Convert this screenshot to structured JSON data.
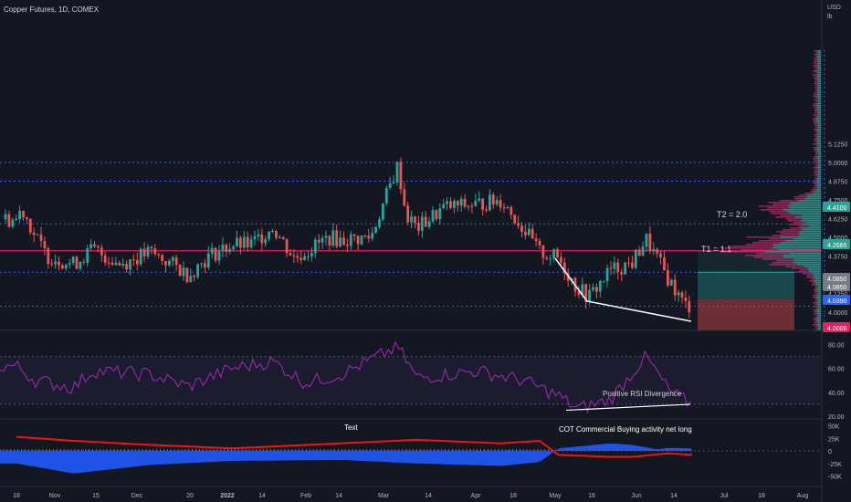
{
  "header": {
    "title": "Copper Futures, 1D, COMEX"
  },
  "price_axis": {
    "currency": "USD",
    "unit": "lb",
    "ticks": [
      "5.1250",
      "5.0000",
      "4.8750",
      "4.7500",
      "4.6250",
      "4.5000",
      "4.3750",
      "4.2500",
      "4.1250",
      "4.0000"
    ]
  },
  "rsi_axis": {
    "ticks": [
      "80.00",
      "60.00",
      "40.00",
      "20.00"
    ]
  },
  "cot_axis": {
    "ticks": [
      "50K",
      "25K",
      "0",
      "-25K",
      "-50K"
    ]
  },
  "time_axis": {
    "labels": [
      "18",
      "Nov",
      "15",
      "Dec",
      "20",
      "2022",
      "14",
      "Feb",
      "14",
      "Mar",
      "14",
      "Apr",
      "18",
      "May",
      "16",
      "Jun",
      "14",
      "Jul",
      "18",
      "Aug"
    ]
  },
  "price_badges": [
    {
      "label": "4.4100",
      "color": "#26a69a"
    },
    {
      "label": "4.2665",
      "color": "#26a69a"
    },
    {
      "label": "4.0850",
      "color": "#787b86"
    },
    {
      "label": "4.0850",
      "color": "#787b86"
    },
    {
      "label": "4.0390",
      "color": "#2962ff"
    },
    {
      "label": "4.0000",
      "color": "#e91e63"
    }
  ],
  "annotations": {
    "t2": "T2 = 2.0",
    "t1": "T1 = 1.1",
    "rsi_divergence": "Positive RSI Divergence",
    "cot_text": "Text",
    "cot_note": "COT Commercial Buying activity net long"
  },
  "colors": {
    "background": "#131722",
    "up": "#26a69a",
    "down": "#ef5350",
    "rsi": "#9c27b0",
    "cot_fill": "#1e53e5",
    "cot_line": "#f01414",
    "level_line": "#e91e63",
    "dotted": "#2962ff"
  },
  "chart_data": [
    {
      "type": "candlestick",
      "title": "Copper Futures, 1D, COMEX",
      "ylim": [
        3.9,
        5.15
      ],
      "horizontal_levels": [
        5.0,
        4.875,
        4.59,
        4.41,
        4.2665,
        4.039
      ],
      "close_path": [
        {
          "x": "2021-10-18",
          "y": 4.62
        },
        {
          "x": "2021-10-20",
          "y": 4.7
        },
        {
          "x": "2021-10-25",
          "y": 4.5
        },
        {
          "x": "2021-10-29",
          "y": 4.38
        },
        {
          "x": "2021-11-08",
          "y": 4.32
        },
        {
          "x": "2021-11-15",
          "y": 4.42
        },
        {
          "x": "2021-11-25",
          "y": 4.32
        },
        {
          "x": "2021-12-06",
          "y": 4.4
        },
        {
          "x": "2021-12-15",
          "y": 4.31
        },
        {
          "x": "2021-12-20",
          "y": 4.25
        },
        {
          "x": "2021-12-28",
          "y": 4.38
        },
        {
          "x": "2022-01-05",
          "y": 4.45
        },
        {
          "x": "2022-01-12",
          "y": 4.45
        },
        {
          "x": "2022-01-20",
          "y": 4.57
        },
        {
          "x": "2022-01-28",
          "y": 4.36
        },
        {
          "x": "2022-02-10",
          "y": 4.5
        },
        {
          "x": "2022-02-14",
          "y": 4.48
        },
        {
          "x": "2022-02-25",
          "y": 4.5
        },
        {
          "x": "2022-03-07",
          "y": 4.98
        },
        {
          "x": "2022-03-10",
          "y": 4.65
        },
        {
          "x": "2022-03-14",
          "y": 4.56
        },
        {
          "x": "2022-03-24",
          "y": 4.7
        },
        {
          "x": "2022-04-05",
          "y": 4.72
        },
        {
          "x": "2022-04-14",
          "y": 4.75
        },
        {
          "x": "2022-04-22",
          "y": 4.56
        },
        {
          "x": "2022-04-28",
          "y": 4.4
        },
        {
          "x": "2022-05-05",
          "y": 4.36
        },
        {
          "x": "2022-05-11",
          "y": 4.18
        },
        {
          "x": "2022-05-16",
          "y": 4.1
        },
        {
          "x": "2022-05-24",
          "y": 4.28
        },
        {
          "x": "2022-06-01",
          "y": 4.33
        },
        {
          "x": "2022-06-06",
          "y": 4.49
        },
        {
          "x": "2022-06-10",
          "y": 4.36
        },
        {
          "x": "2022-06-15",
          "y": 4.2
        },
        {
          "x": "2022-06-20",
          "y": 4.05
        },
        {
          "x": "2022-06-23",
          "y": 4.04
        }
      ]
    },
    {
      "type": "line",
      "name": "RSI",
      "ylim": [
        20,
        85
      ],
      "bands": [
        70,
        30
      ],
      "points": [
        {
          "x": "2021-10-18",
          "y": 62
        },
        {
          "x": "2021-10-25",
          "y": 50
        },
        {
          "x": "2021-11-08",
          "y": 44
        },
        {
          "x": "2021-11-15",
          "y": 58
        },
        {
          "x": "2021-12-06",
          "y": 55
        },
        {
          "x": "2021-12-20",
          "y": 45
        },
        {
          "x": "2022-01-05",
          "y": 60
        },
        {
          "x": "2022-01-20",
          "y": 66
        },
        {
          "x": "2022-02-01",
          "y": 48
        },
        {
          "x": "2022-02-14",
          "y": 55
        },
        {
          "x": "2022-03-07",
          "y": 78
        },
        {
          "x": "2022-03-14",
          "y": 52
        },
        {
          "x": "2022-04-05",
          "y": 58
        },
        {
          "x": "2022-04-22",
          "y": 50
        },
        {
          "x": "2022-05-05",
          "y": 37
        },
        {
          "x": "2022-05-12",
          "y": 26
        },
        {
          "x": "2022-05-24",
          "y": 34
        },
        {
          "x": "2022-06-06",
          "y": 70
        },
        {
          "x": "2022-06-15",
          "y": 40
        },
        {
          "x": "2022-06-23",
          "y": 30
        }
      ]
    },
    {
      "type": "area",
      "name": "COT",
      "ylim": [
        -55,
        55
      ],
      "series": [
        {
          "name": "net position",
          "points": [
            {
              "x": "2021-10-18",
              "y": -25
            },
            {
              "x": "2021-11-08",
              "y": -45
            },
            {
              "x": "2021-12-06",
              "y": -28
            },
            {
              "x": "2022-01-05",
              "y": -20
            },
            {
              "x": "2022-02-14",
              "y": -18
            },
            {
              "x": "2022-03-14",
              "y": -25
            },
            {
              "x": "2022-04-14",
              "y": -30
            },
            {
              "x": "2022-04-28",
              "y": -22
            },
            {
              "x": "2022-05-05",
              "y": 5
            },
            {
              "x": "2022-05-24",
              "y": 15
            },
            {
              "x": "2022-06-01",
              "y": 12
            },
            {
              "x": "2022-06-10",
              "y": 3
            },
            {
              "x": "2022-06-14",
              "y": 6
            },
            {
              "x": "2022-06-23",
              "y": 5
            }
          ]
        },
        {
          "name": "commercial line",
          "points": [
            {
              "x": "2021-10-18",
              "y": 28
            },
            {
              "x": "2021-11-08",
              "y": 20
            },
            {
              "x": "2021-12-06",
              "y": 12
            },
            {
              "x": "2022-01-05",
              "y": 5
            },
            {
              "x": "2022-02-14",
              "y": 15
            },
            {
              "x": "2022-03-14",
              "y": 22
            },
            {
              "x": "2022-04-14",
              "y": 15
            },
            {
              "x": "2022-04-28",
              "y": 20
            },
            {
              "x": "2022-05-05",
              "y": -8
            },
            {
              "x": "2022-05-24",
              "y": -12
            },
            {
              "x": "2022-06-01",
              "y": -12
            },
            {
              "x": "2022-06-14",
              "y": -5
            },
            {
              "x": "2022-06-23",
              "y": -8
            }
          ]
        }
      ]
    }
  ]
}
